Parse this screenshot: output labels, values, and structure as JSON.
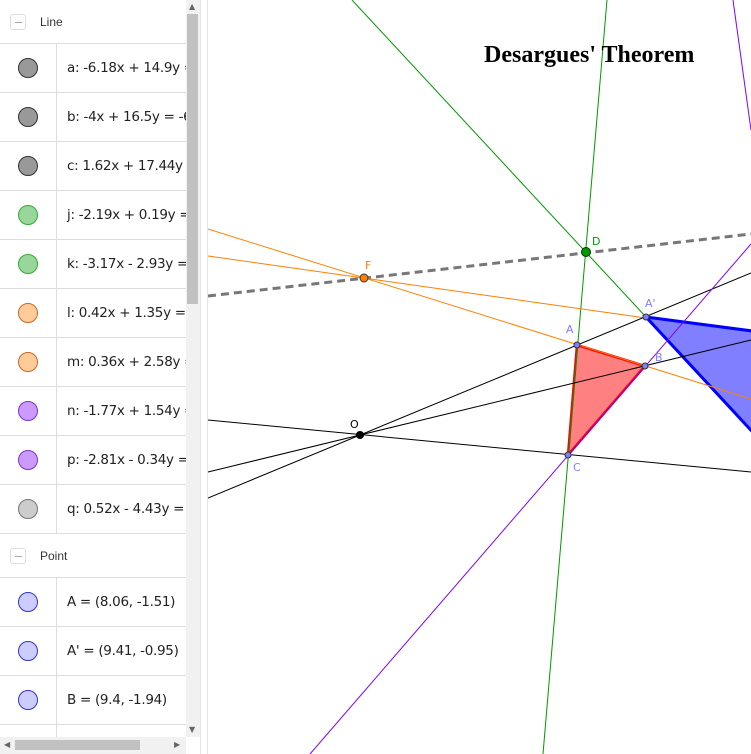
{
  "algebra": {
    "groups": [
      {
        "title": "Line",
        "items": [
          {
            "text": "a: -6.18x + 14.9y = ",
            "color": "#999999",
            "border": "#333333"
          },
          {
            "text": "b: -4x + 16.5y = -6",
            "color": "#999999",
            "border": "#333333"
          },
          {
            "text": "c: 1.62x + 17.44y = ",
            "color": "#999999",
            "border": "#333333"
          },
          {
            "text": "j: -2.19x + 0.19y = ",
            "color": "#99d699",
            "border": "#33aa33"
          },
          {
            "text": "k: -3.17x - 2.93y = ",
            "color": "#99d699",
            "border": "#33aa33"
          },
          {
            "text": "l: 0.42x + 1.35y = 1",
            "color": "#ffcc99",
            "border": "#cc6622"
          },
          {
            "text": "m: 0.36x + 2.58y = ",
            "color": "#ffcc99",
            "border": "#cc6622"
          },
          {
            "text": "n: -1.77x + 1.54y = ",
            "color": "#cc99ff",
            "border": "#7f33cc"
          },
          {
            "text": "p: -2.81x - 0.34y = ",
            "color": "#cc99ff",
            "border": "#7f33cc"
          },
          {
            "text": "q: 0.52x - 4.43y = 2",
            "color": "#cccccc",
            "border": "#777777"
          }
        ]
      },
      {
        "title": "Point",
        "items": [
          {
            "text": "A = (8.06, -1.51)",
            "color": "#ccccff",
            "border": "#3333cc"
          },
          {
            "text": "A' = (9.41, -0.95)",
            "color": "#ccccff",
            "border": "#3333cc"
          },
          {
            "text": "B = (9.4, -1.94)",
            "color": "#ccccff",
            "border": "#3333cc"
          },
          {
            "text": "",
            "color": "#ccccff",
            "border": "#3333cc"
          }
        ]
      }
    ]
  },
  "graphics": {
    "title": "Desargues' Theorem",
    "labels": {
      "F": "F",
      "D": "D",
      "A1": "A'",
      "A": "A",
      "B": "B",
      "C": "C",
      "O": "O"
    },
    "colors": {
      "orange": "#ff7f00",
      "green": "#009900",
      "purple": "#7f00ff",
      "red": "#ff0000",
      "blue": "#0000ff",
      "point": "#6666ff",
      "dashed": "#777777"
    }
  }
}
